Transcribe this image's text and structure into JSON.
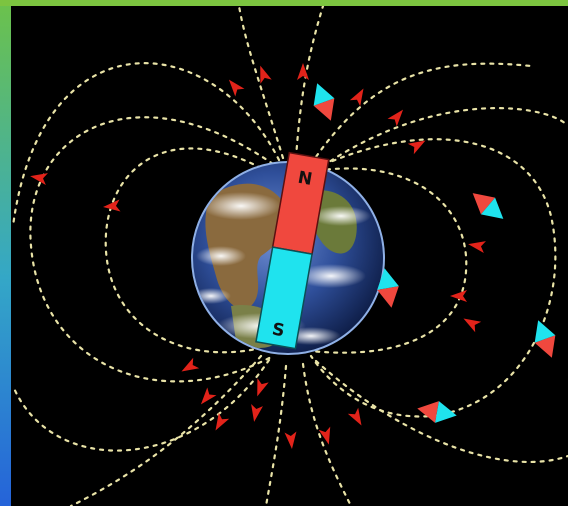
{
  "colors": {
    "north_pole": "#f0483e",
    "south_pole": "#1fe3ee",
    "field_line": "#e9e3a7",
    "arrow": "#e2231a",
    "background": "#000000",
    "frame_green": "#6cc24a",
    "frame_blue": "#2563d9"
  },
  "magnet": {
    "north_label": "N",
    "south_label": "S"
  },
  "icons": {
    "earth": "earth-globe-icon",
    "compass": "compass-needle-icon",
    "field_arrow": "field-arrow-icon"
  }
}
